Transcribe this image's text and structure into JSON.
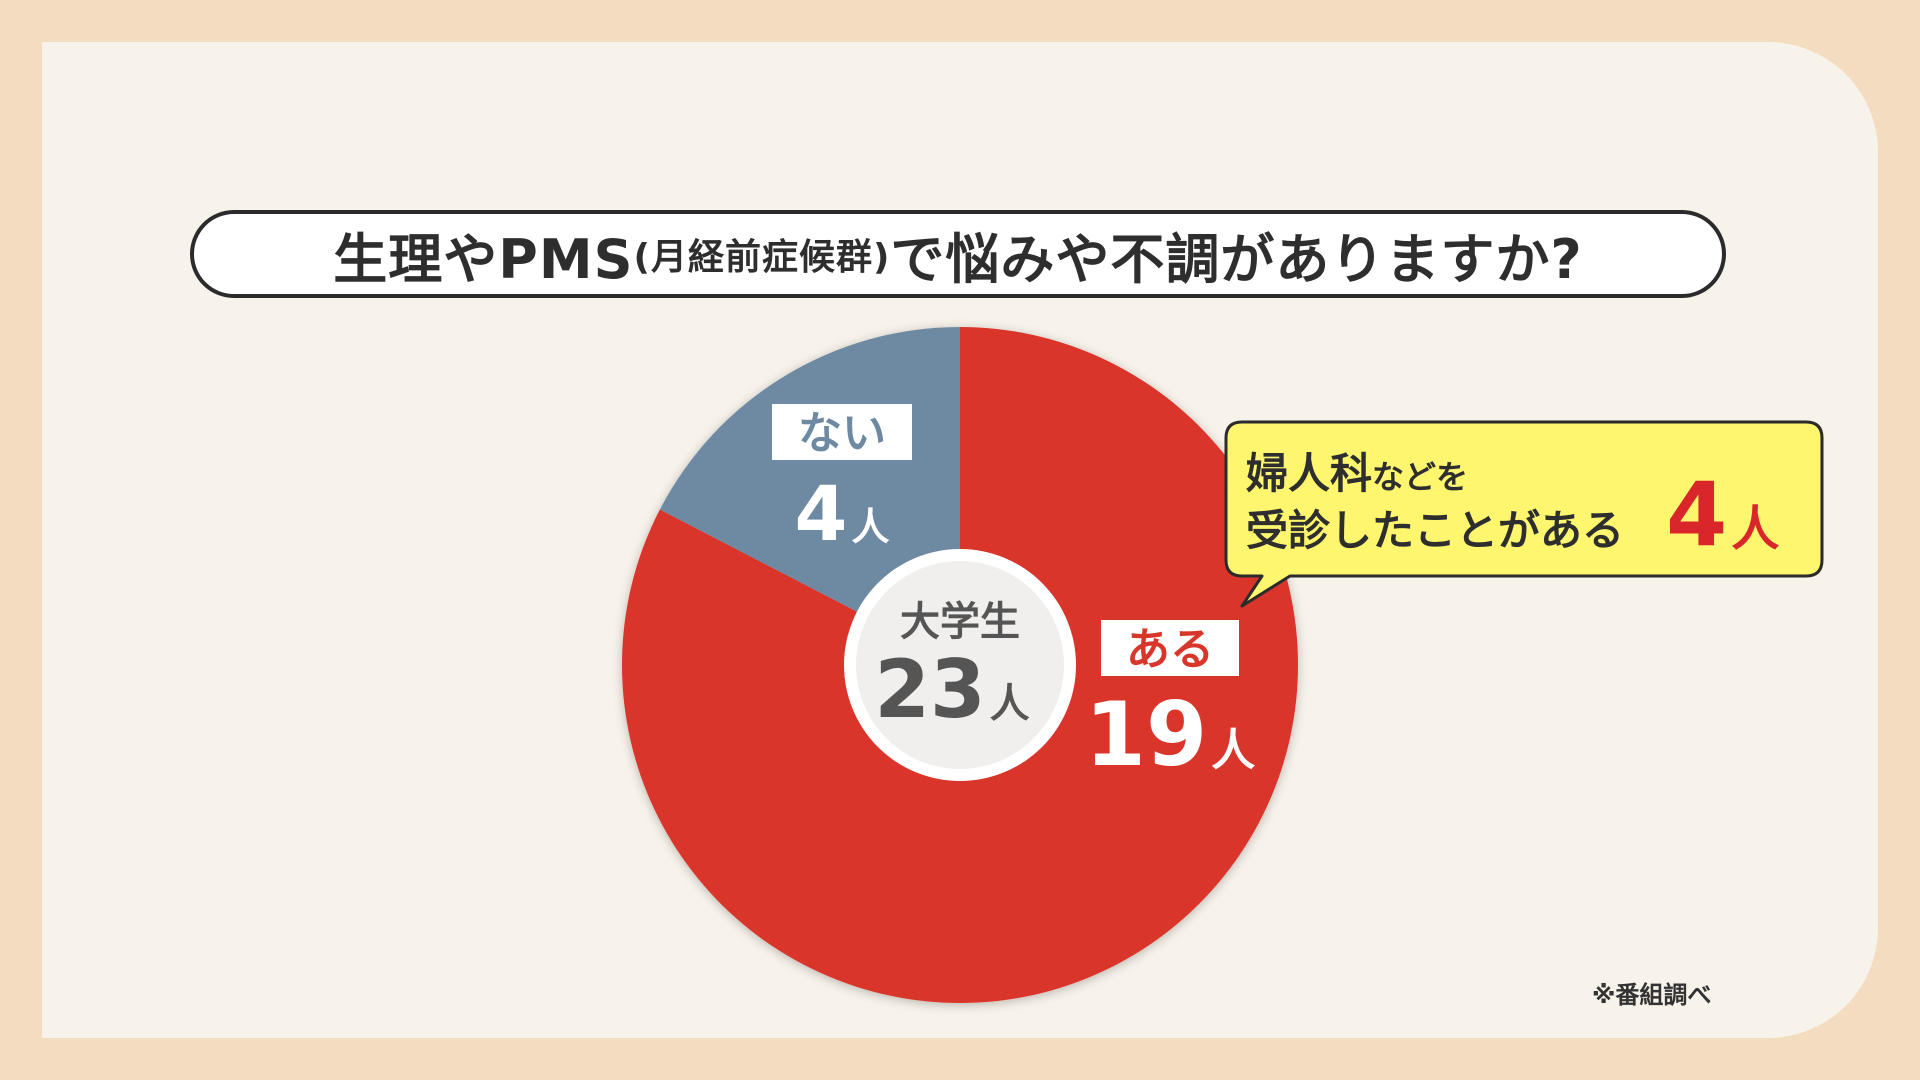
{
  "title": {
    "part1": "生理やPMS",
    "part2": "(月経前症候群)",
    "part3": "で悩みや不調がありますか?"
  },
  "chart_data": {
    "type": "pie",
    "series": [
      {
        "values": [
          {
            "category": "ある",
            "value": 19,
            "value_text": "19",
            "color": "#d9362b"
          },
          {
            "category": "ない",
            "value": 4,
            "value_text": "4",
            "color": "#6e8aa3"
          }
        ]
      }
    ],
    "unit": "人",
    "center": {
      "label": "大学生",
      "total_text": "23",
      "unit": "人"
    }
  },
  "callout": {
    "line1_big": "婦人科",
    "line1_small": "などを",
    "line2": "受診したことがある",
    "value": "4",
    "unit": "人"
  },
  "footnote": "※番組調べ",
  "colors": {
    "background": "#f3dcbf",
    "panel": "#f7f2ea",
    "yes": "#d9362b",
    "no": "#6e8aa3",
    "callout_bg": "#fdf66e",
    "text_dark": "#2e2e2e",
    "center_text": "#555555"
  }
}
